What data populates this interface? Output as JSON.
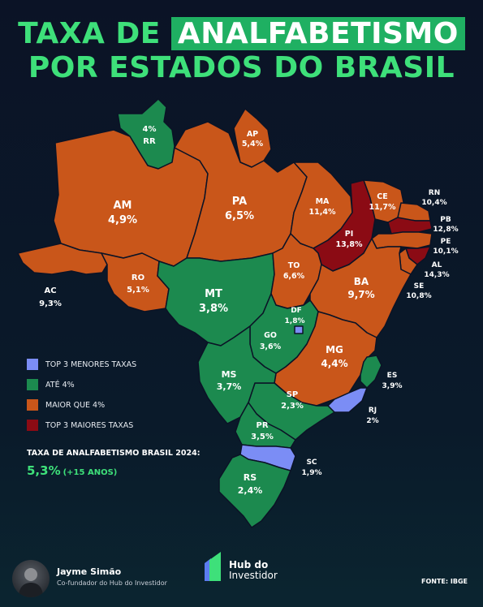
{
  "header": {
    "title_line1_prefix": "TAXA DE",
    "title_line1_highlight": "ANALFABETISMO",
    "title_line2": "POR ESTADOS DO BRASIL"
  },
  "colors": {
    "top3_lowest": "#7b8df5",
    "up_to_4": "#1c8a4f",
    "above_4": "#c9561a",
    "top3_highest": "#8b0b14",
    "accent": "#3ee07a"
  },
  "legend": {
    "items": [
      {
        "label": "TOP 3 MENORES TAXAS",
        "color": "#7b8df5"
      },
      {
        "label": "ATÉ 4%",
        "color": "#1c8a4f"
      },
      {
        "label": "MAIOR QUE 4%",
        "color": "#c9561a"
      },
      {
        "label": "TOP 3 MAIORES TAXAS",
        "color": "#8b0b14"
      }
    ]
  },
  "national": {
    "title": "TAXA DE ANALFABETISMO BRASIL 2024:",
    "value": "5,3%",
    "note": "(+15 ANOS)"
  },
  "states": {
    "rr": {
      "sigla": "RR",
      "rate": "4%"
    },
    "ap": {
      "sigla": "AP",
      "rate": "5,4%"
    },
    "am": {
      "sigla": "AM",
      "rate": "4,9%"
    },
    "pa": {
      "sigla": "PA",
      "rate": "6,5%"
    },
    "ac": {
      "sigla": "AC",
      "rate": "9,3%"
    },
    "ro": {
      "sigla": "RO",
      "rate": "5,1%"
    },
    "mt": {
      "sigla": "MT",
      "rate": "3,8%"
    },
    "ma": {
      "sigla": "MA",
      "rate": "11,4%"
    },
    "pi": {
      "sigla": "PI",
      "rate": "13,8%"
    },
    "ce": {
      "sigla": "CE",
      "rate": "11,7%"
    },
    "rn": {
      "sigla": "RN",
      "rate": "10,4%"
    },
    "pb": {
      "sigla": "PB",
      "rate": "12,8%"
    },
    "pe": {
      "sigla": "PE",
      "rate": "10,1%"
    },
    "al": {
      "sigla": "AL",
      "rate": "14,3%"
    },
    "se": {
      "sigla": "SE",
      "rate": "10,8%"
    },
    "to": {
      "sigla": "TO",
      "rate": "6,6%"
    },
    "ba": {
      "sigla": "BA",
      "rate": "9,7%"
    },
    "df": {
      "sigla": "DF",
      "rate": "1,8%"
    },
    "go": {
      "sigla": "GO",
      "rate": "3,6%"
    },
    "mg": {
      "sigla": "MG",
      "rate": "4,4%"
    },
    "ms": {
      "sigla": "MS",
      "rate": "3,7%"
    },
    "es": {
      "sigla": "ES",
      "rate": "3,9%"
    },
    "sp": {
      "sigla": "SP",
      "rate": "2,3%"
    },
    "rj": {
      "sigla": "RJ",
      "rate": "2%"
    },
    "pr": {
      "sigla": "PR",
      "rate": "3,5%"
    },
    "sc": {
      "sigla": "SC",
      "rate": "1,9%"
    },
    "rs": {
      "sigla": "RS",
      "rate": "2,4%"
    }
  },
  "footer": {
    "author_name": "Jayme Simão",
    "author_role": "Co-fundador do Hub do Investidor",
    "brand_line1": "Hub do",
    "brand_line2": "Investidor",
    "source": "FONTE: IBGE"
  }
}
